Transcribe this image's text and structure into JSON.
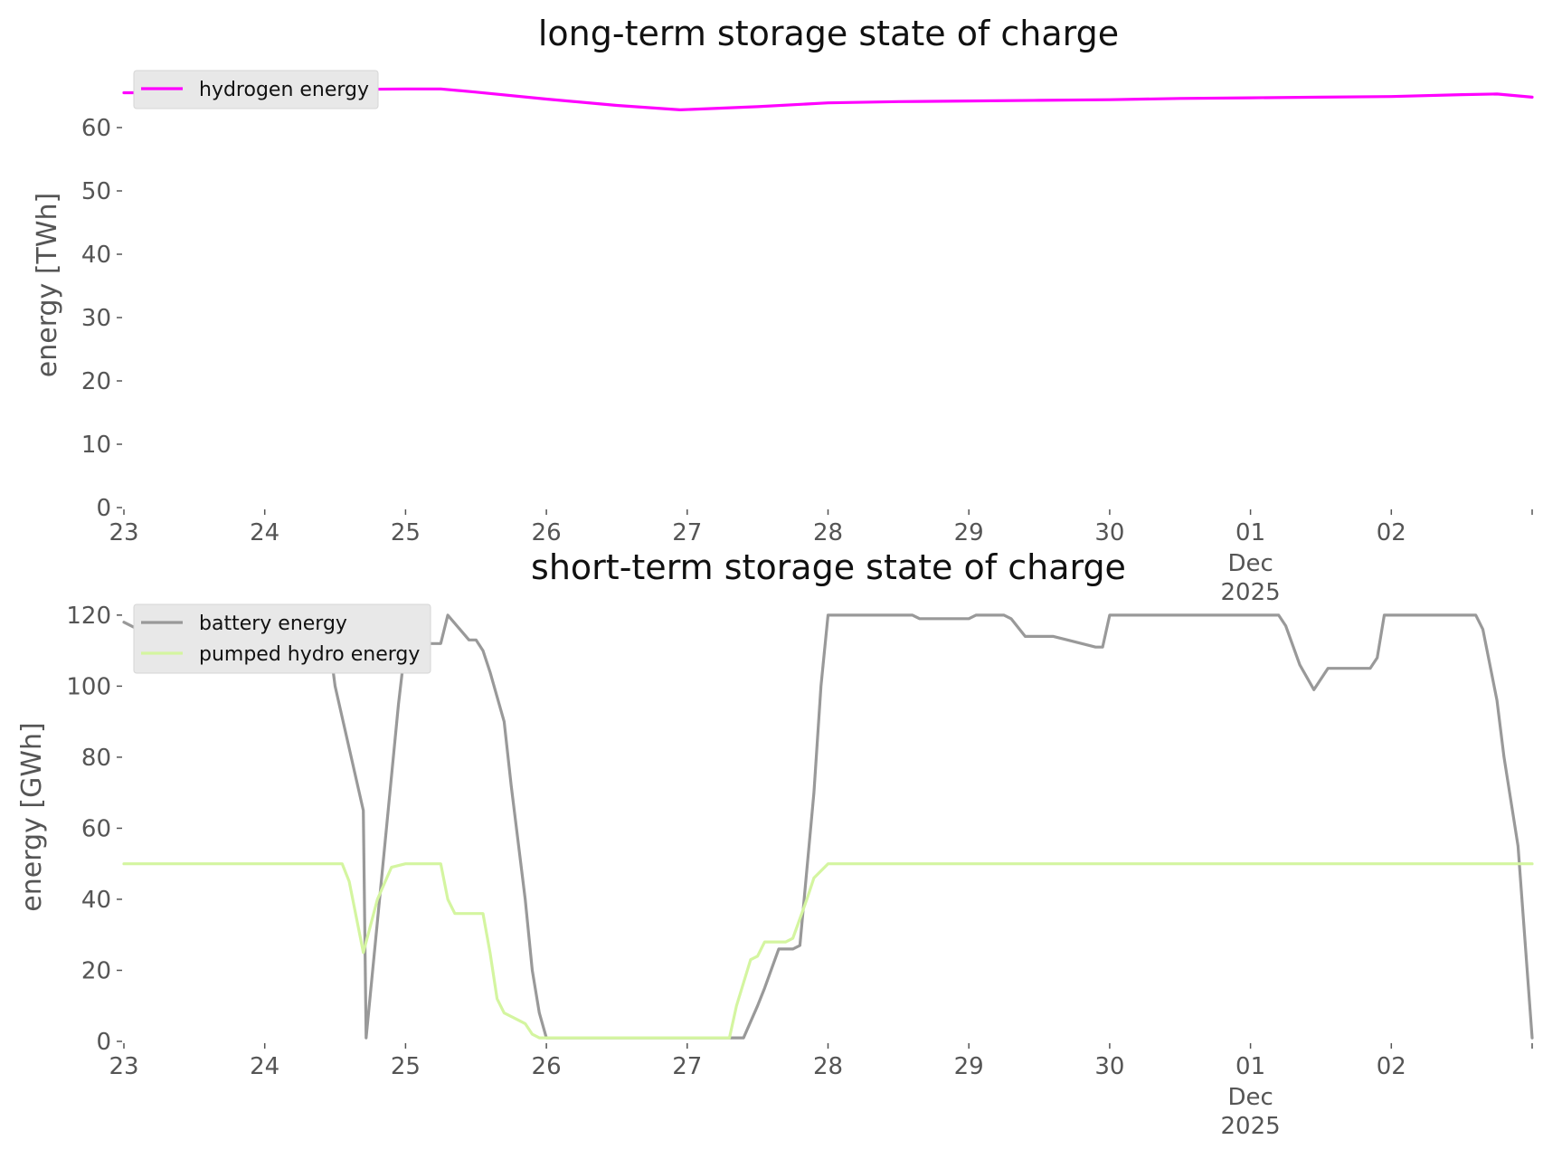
{
  "chart_data": [
    {
      "type": "line",
      "title": "long-term storage state of charge",
      "ylabel": "energy [TWh]",
      "xlabel": "",
      "ylim": [
        0,
        67
      ],
      "yticks": [
        0,
        10,
        20,
        30,
        40,
        50,
        60
      ],
      "xlim_days": [
        23,
        33
      ],
      "xticks": [
        {
          "day": 23,
          "label": "23"
        },
        {
          "day": 24,
          "label": "24"
        },
        {
          "day": 25,
          "label": "25"
        },
        {
          "day": 26,
          "label": "26"
        },
        {
          "day": 27,
          "label": "27"
        },
        {
          "day": 28,
          "label": "28"
        },
        {
          "day": 29,
          "label": "29"
        },
        {
          "day": 30,
          "label": "30"
        },
        {
          "day": 31,
          "label": "01",
          "sub": [
            "Dec",
            "2025"
          ]
        },
        {
          "day": 32,
          "label": "02"
        },
        {
          "day": 33,
          "label": ""
        }
      ],
      "legend_position": "upper-left",
      "grid": false,
      "series": [
        {
          "name": "hydrogen energy",
          "color": "#ff00ff",
          "x": [
            23,
            23.5,
            24,
            24.5,
            25,
            25.25,
            25.5,
            26,
            26.5,
            26.95,
            27.5,
            28,
            28.5,
            29,
            29.5,
            30,
            30.5,
            31,
            31.5,
            32,
            32.5,
            32.75,
            33
          ],
          "y": [
            65.5,
            65.5,
            66.0,
            66.0,
            66.1,
            66.1,
            65.6,
            64.5,
            63.5,
            62.8,
            63.3,
            63.9,
            64.1,
            64.2,
            64.3,
            64.4,
            64.6,
            64.7,
            64.8,
            64.9,
            65.2,
            65.3,
            64.8
          ]
        }
      ]
    },
    {
      "type": "line",
      "title": "short-term storage state of charge",
      "ylabel": "energy [GWh]",
      "xlabel": "",
      "ylim": [
        0,
        122
      ],
      "yticks": [
        0,
        20,
        40,
        60,
        80,
        100,
        120
      ],
      "xlim_days": [
        23,
        33
      ],
      "xticks": [
        {
          "day": 23,
          "label": "23"
        },
        {
          "day": 24,
          "label": "24"
        },
        {
          "day": 25,
          "label": "25"
        },
        {
          "day": 26,
          "label": "26"
        },
        {
          "day": 27,
          "label": "27"
        },
        {
          "day": 28,
          "label": "28"
        },
        {
          "day": 29,
          "label": "29"
        },
        {
          "day": 30,
          "label": "30"
        },
        {
          "day": 31,
          "label": "01",
          "sub": [
            "Dec",
            "2025"
          ]
        },
        {
          "day": 32,
          "label": "02"
        },
        {
          "day": 33,
          "label": ""
        }
      ],
      "legend_position": "upper-left",
      "grid": false,
      "series": [
        {
          "name": "battery energy",
          "color": "#999999",
          "x": [
            23,
            23.1,
            23.4,
            23.6,
            23.8,
            24,
            24.3,
            24.45,
            24.5,
            24.7,
            24.72,
            24.95,
            25.0,
            25.25,
            25.3,
            25.45,
            25.5,
            25.55,
            25.6,
            25.7,
            25.75,
            25.85,
            25.9,
            25.95,
            26.0,
            26.5,
            27.0,
            27.4,
            27.5,
            27.55,
            27.65,
            27.75,
            27.8,
            27.9,
            27.95,
            28.0,
            28.3,
            28.6,
            28.65,
            29.0,
            29.05,
            29.25,
            29.3,
            29.4,
            29.6,
            29.7,
            29.9,
            29.95,
            30.0,
            30.3,
            30.6,
            31.0,
            31.2,
            31.25,
            31.35,
            31.45,
            31.55,
            31.85,
            31.9,
            31.95,
            32.0,
            32.3,
            32.6,
            32.65,
            32.75,
            32.8,
            32.9,
            33.0
          ],
          "y": [
            118,
            116,
            114,
            114,
            119,
            120,
            120,
            115,
            100,
            65,
            1,
            95,
            112,
            112,
            120,
            113,
            113,
            110,
            104,
            90,
            72,
            40,
            20,
            8,
            1,
            1,
            1,
            1,
            10,
            15,
            26,
            26,
            27,
            70,
            100,
            120,
            120,
            120,
            119,
            119,
            120,
            120,
            119,
            114,
            114,
            113,
            111,
            111,
            120,
            120,
            120,
            120,
            120,
            117,
            106,
            99,
            105,
            105,
            108,
            120,
            120,
            120,
            120,
            116,
            96,
            80,
            55,
            1
          ]
        },
        {
          "name": "pumped hydro energy",
          "color": "#d4f5a0",
          "x": [
            23,
            24,
            24.55,
            24.6,
            24.7,
            24.8,
            24.9,
            25.0,
            25.25,
            25.3,
            25.35,
            25.55,
            25.6,
            25.65,
            25.7,
            25.8,
            25.85,
            25.9,
            25.95,
            26.0,
            27.0,
            27.3,
            27.35,
            27.45,
            27.5,
            27.55,
            27.7,
            27.75,
            27.85,
            27.9,
            28.0,
            29.0,
            30.0,
            31.0,
            32.0,
            33.0
          ],
          "y": [
            50,
            50,
            50,
            45,
            25,
            40,
            49,
            50,
            50,
            40,
            36,
            36,
            25,
            12,
            8,
            6,
            5,
            2,
            1,
            1,
            1,
            1,
            10,
            23,
            24,
            28,
            28,
            29,
            40,
            46,
            50,
            50,
            50,
            50,
            50,
            50
          ]
        }
      ]
    }
  ]
}
